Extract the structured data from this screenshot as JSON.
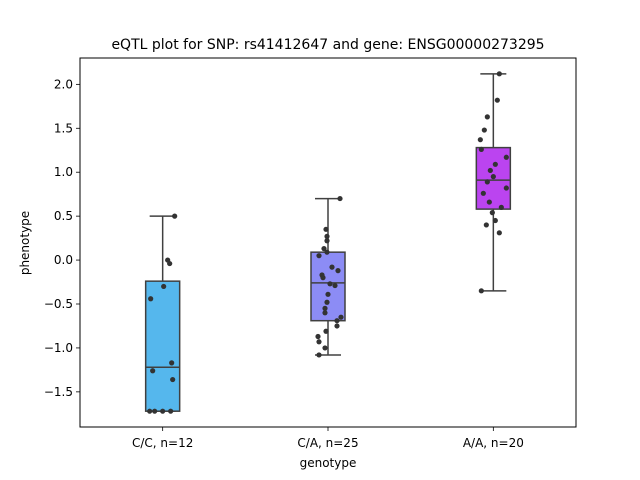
{
  "chart_data": {
    "type": "box",
    "title": "eQTL plot for SNP: rs41412647 and gene: ENSG00000273295",
    "xlabel": "genotype",
    "ylabel": "phenotype",
    "ylim": [
      -1.9,
      2.3
    ],
    "yticks": [
      -1.5,
      -1.0,
      -0.5,
      0.0,
      0.5,
      1.0,
      1.5,
      2.0
    ],
    "ytick_labels": [
      "−1.5",
      "−1.0",
      "−0.5",
      "0.0",
      "0.5",
      "1.0",
      "1.5",
      "2.0"
    ],
    "grid": false,
    "categories": [
      "C/C, n=12",
      "C/A, n=25",
      "A/A, n=20"
    ],
    "boxes": [
      {
        "color": "#55b7ed",
        "whisker_low": -1.72,
        "q1": -1.72,
        "median": -1.22,
        "q3": -0.24,
        "whisker_high": 0.5
      },
      {
        "color": "#8c8cf5",
        "whisker_low": -1.08,
        "q1": -0.69,
        "median": -0.26,
        "q3": 0.09,
        "whisker_high": 0.7
      },
      {
        "color": "#bb44f0",
        "whisker_low": -0.35,
        "q1": 0.58,
        "median": 0.91,
        "q3": 1.28,
        "whisker_high": 2.12
      }
    ],
    "points": [
      {
        "category": "C/C, n=12",
        "values": [
          0.5,
          0.0,
          -0.04,
          -0.3,
          -0.44,
          -1.17,
          -1.26,
          -1.36,
          -1.72,
          -1.72,
          -1.72,
          -1.72
        ],
        "offsets": [
          0.12,
          0.05,
          0.07,
          0.01,
          -0.12,
          0.09,
          -0.1,
          0.1,
          -0.13,
          -0.08,
          0.0,
          0.08
        ]
      },
      {
        "category": "C/A, n=25",
        "values": [
          0.7,
          0.35,
          0.27,
          0.22,
          0.13,
          0.09,
          0.05,
          -0.08,
          -0.12,
          -0.17,
          -0.2,
          -0.27,
          -0.39,
          -0.48,
          -0.55,
          -0.6,
          -0.65,
          -0.69,
          -0.75,
          -0.81,
          -0.87,
          -0.93,
          -1.0,
          -1.08,
          -0.29
        ],
        "offsets": [
          0.12,
          -0.02,
          -0.01,
          -0.01,
          -0.04,
          -0.01,
          -0.09,
          0.04,
          0.1,
          -0.06,
          -0.05,
          0.02,
          0.0,
          -0.01,
          -0.03,
          -0.03,
          0.13,
          0.09,
          0.09,
          -0.02,
          -0.1,
          -0.09,
          -0.03,
          -0.09,
          0.07
        ]
      },
      {
        "category": "A/A, n=20",
        "values": [
          2.12,
          1.82,
          1.63,
          1.48,
          1.37,
          1.26,
          1.17,
          1.09,
          1.02,
          0.95,
          0.89,
          0.82,
          0.76,
          0.66,
          0.6,
          0.54,
          0.45,
          0.4,
          0.31,
          -0.35
        ],
        "offsets": [
          0.06,
          0.04,
          -0.06,
          -0.09,
          -0.13,
          -0.12,
          0.13,
          0.02,
          -0.03,
          0.0,
          -0.06,
          0.13,
          -0.1,
          -0.04,
          0.08,
          -0.01,
          0.02,
          -0.07,
          0.06,
          -0.12
        ]
      }
    ]
  }
}
